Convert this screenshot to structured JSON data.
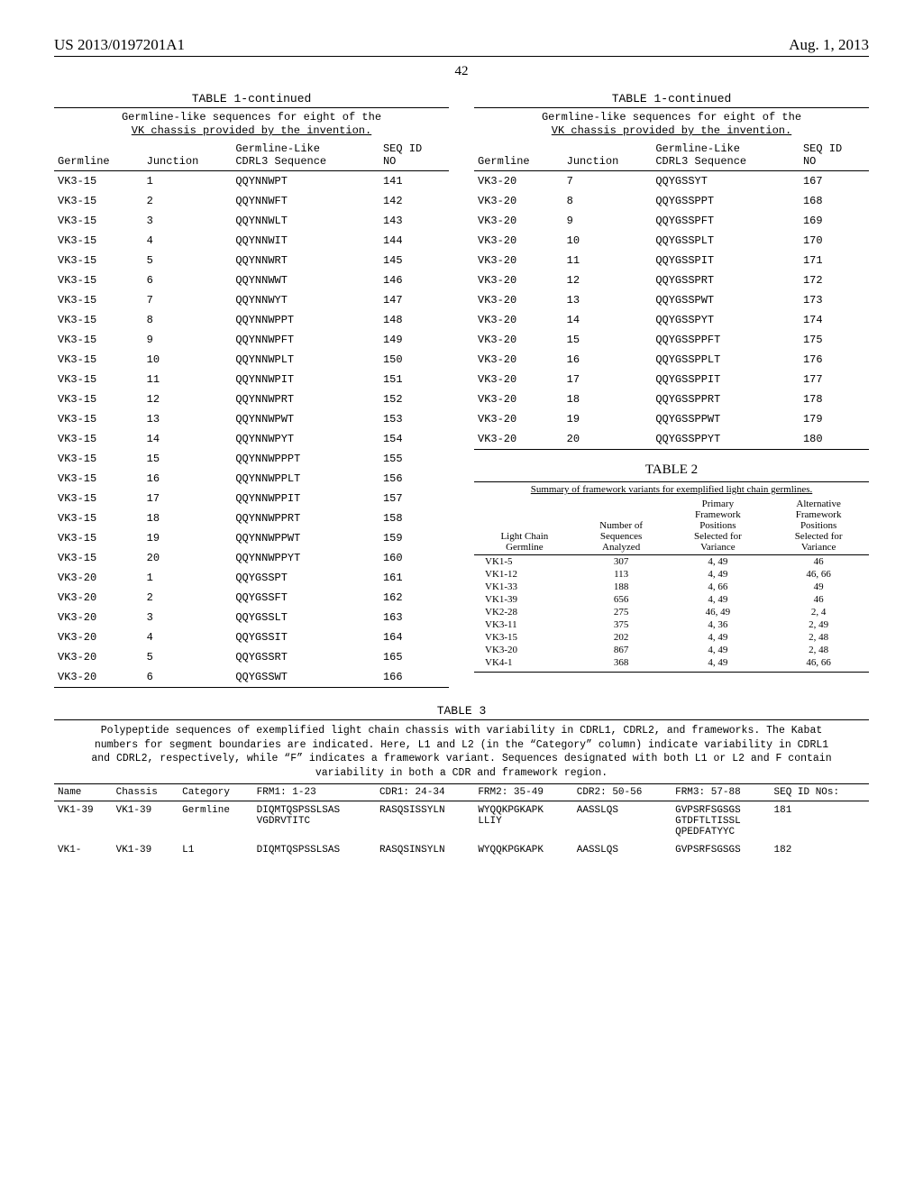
{
  "header": {
    "doc_num": "US 2013/0197201A1",
    "doc_date": "Aug. 1, 2013",
    "page_num": "42"
  },
  "table1": {
    "title": "TABLE 1-continued",
    "caption_l1": "Germline-like sequences for eight of the",
    "caption_l2": "VK chassis provided by the invention.",
    "columns": [
      "Germline",
      "Junction",
      "Germline-Like CDRL3 Sequence",
      "SEQ ID NO"
    ],
    "left_rows": [
      [
        "VK3-15",
        "1",
        "QQYNNWPT",
        "141"
      ],
      [
        "VK3-15",
        "2",
        "QQYNNWFT",
        "142"
      ],
      [
        "VK3-15",
        "3",
        "QQYNNWLT",
        "143"
      ],
      [
        "VK3-15",
        "4",
        "QQYNNWIT",
        "144"
      ],
      [
        "VK3-15",
        "5",
        "QQYNNWRT",
        "145"
      ],
      [
        "VK3-15",
        "6",
        "QQYNNWWT",
        "146"
      ],
      [
        "VK3-15",
        "7",
        "QQYNNWYT",
        "147"
      ],
      [
        "VK3-15",
        "8",
        "QQYNNWPPT",
        "148"
      ],
      [
        "VK3-15",
        "9",
        "QQYNNWPFT",
        "149"
      ],
      [
        "VK3-15",
        "10",
        "QQYNNWPLT",
        "150"
      ],
      [
        "VK3-15",
        "11",
        "QQYNNWPIT",
        "151"
      ],
      [
        "VK3-15",
        "12",
        "QQYNNWPRT",
        "152"
      ],
      [
        "VK3-15",
        "13",
        "QQYNNWPWT",
        "153"
      ],
      [
        "VK3-15",
        "14",
        "QQYNNWPYT",
        "154"
      ],
      [
        "VK3-15",
        "15",
        "QQYNNWPPPT",
        "155"
      ],
      [
        "VK3-15",
        "16",
        "QQYNNWPPLT",
        "156"
      ],
      [
        "VK3-15",
        "17",
        "QQYNNWPPIT",
        "157"
      ],
      [
        "VK3-15",
        "18",
        "QQYNNWPPRT",
        "158"
      ],
      [
        "VK3-15",
        "19",
        "QQYNNWPPWT",
        "159"
      ],
      [
        "VK3-15",
        "20",
        "QQYNNWPPYT",
        "160"
      ],
      [
        "VK3-20",
        "1",
        "QQYGSSPT",
        "161"
      ],
      [
        "VK3-20",
        "2",
        "QQYGSSFT",
        "162"
      ],
      [
        "VK3-20",
        "3",
        "QQYGSSLT",
        "163"
      ],
      [
        "VK3-20",
        "4",
        "QQYGSSIT",
        "164"
      ],
      [
        "VK3-20",
        "5",
        "QQYGSSRT",
        "165"
      ],
      [
        "VK3-20",
        "6",
        "QQYGSSWT",
        "166"
      ]
    ],
    "right_rows": [
      [
        "VK3-20",
        "7",
        "QQYGSSYT",
        "167"
      ],
      [
        "VK3-20",
        "8",
        "QQYGSSPPT",
        "168"
      ],
      [
        "VK3-20",
        "9",
        "QQYGSSPFT",
        "169"
      ],
      [
        "VK3-20",
        "10",
        "QQYGSSPLT",
        "170"
      ],
      [
        "VK3-20",
        "11",
        "QQYGSSPIT",
        "171"
      ],
      [
        "VK3-20",
        "12",
        "QQYGSSPRT",
        "172"
      ],
      [
        "VK3-20",
        "13",
        "QQYGSSPWT",
        "173"
      ],
      [
        "VK3-20",
        "14",
        "QQYGSSPYT",
        "174"
      ],
      [
        "VK3-20",
        "15",
        "QQYGSSPPFT",
        "175"
      ],
      [
        "VK3-20",
        "16",
        "QQYGSSPPLT",
        "176"
      ],
      [
        "VK3-20",
        "17",
        "QQYGSSPPIT",
        "177"
      ],
      [
        "VK3-20",
        "18",
        "QQYGSSPPRT",
        "178"
      ],
      [
        "VK3-20",
        "19",
        "QQYGSSPPWT",
        "179"
      ],
      [
        "VK3-20",
        "20",
        "QQYGSSPPYT",
        "180"
      ]
    ]
  },
  "table2": {
    "title": "TABLE 2",
    "caption": "Summary of framework variants for exemplified light chain germlines.",
    "columns": [
      "Light Chain Germline",
      "Number of Sequences Analyzed",
      "Primary Framework Positions Selected for Variance",
      "Alternative Framework Positions Selected for Variance"
    ],
    "rows": [
      [
        "VK1-5",
        "307",
        "4, 49",
        "46"
      ],
      [
        "VK1-12",
        "113",
        "4, 49",
        "46, 66"
      ],
      [
        "VK1-33",
        "188",
        "4, 66",
        "49"
      ],
      [
        "VK1-39",
        "656",
        "4, 49",
        "46"
      ],
      [
        "VK2-28",
        "275",
        "46, 49",
        "2, 4"
      ],
      [
        "VK3-11",
        "375",
        "4, 36",
        "2, 49"
      ],
      [
        "VK3-15",
        "202",
        "4, 49",
        "2, 48"
      ],
      [
        "VK3-20",
        "867",
        "4, 49",
        "2, 48"
      ],
      [
        "VK4-1",
        "368",
        "4, 49",
        "46, 66"
      ]
    ]
  },
  "table3": {
    "title": "TABLE 3",
    "caption": "Polypeptide sequences of exemplified light chain chassis with variability in CDRL1, CDRL2, and frameworks. The Kabat numbers for segment boundaries are indicated. Here, L1 and L2 (in the “Category” column) indicate variability in CDRL1 and CDRL2, respectively, while “F” indicates a framework variant. Sequences designated with both L1 or L2 and F contain variability in both a CDR and framework region.",
    "columns": [
      "Name",
      "Chassis",
      "Category",
      "FRM1: 1-23",
      "CDR1: 24-34",
      "FRM2: 35-49",
      "CDR2: 50-56",
      "FRM3: 57-88",
      "SEQ ID NOs:"
    ],
    "rows": [
      {
        "name": "VK1-39",
        "chassis": "VK1-39",
        "category": "Germline",
        "frm1": "DIQMTQSPSSLSAS VGDRVTITC",
        "cdr1": "RASQSISSYLN",
        "frm2": "WYQQKPGKAPK LLIY",
        "cdr2": "AASSLQS",
        "frm3": "GVPSRFSGSGS GTDFTLTISSL QPEDFATYYC",
        "seq": "181"
      },
      {
        "name": "VK1-",
        "chassis": "VK1-39",
        "category": "L1",
        "frm1": "DIQMTQSPSSLSAS",
        "cdr1": "RASQSINSYLN",
        "frm2": "WYQQKPGKAPK",
        "cdr2": "AASSLQS",
        "frm3": "GVPSRFSGSGS",
        "seq": "182"
      }
    ]
  }
}
